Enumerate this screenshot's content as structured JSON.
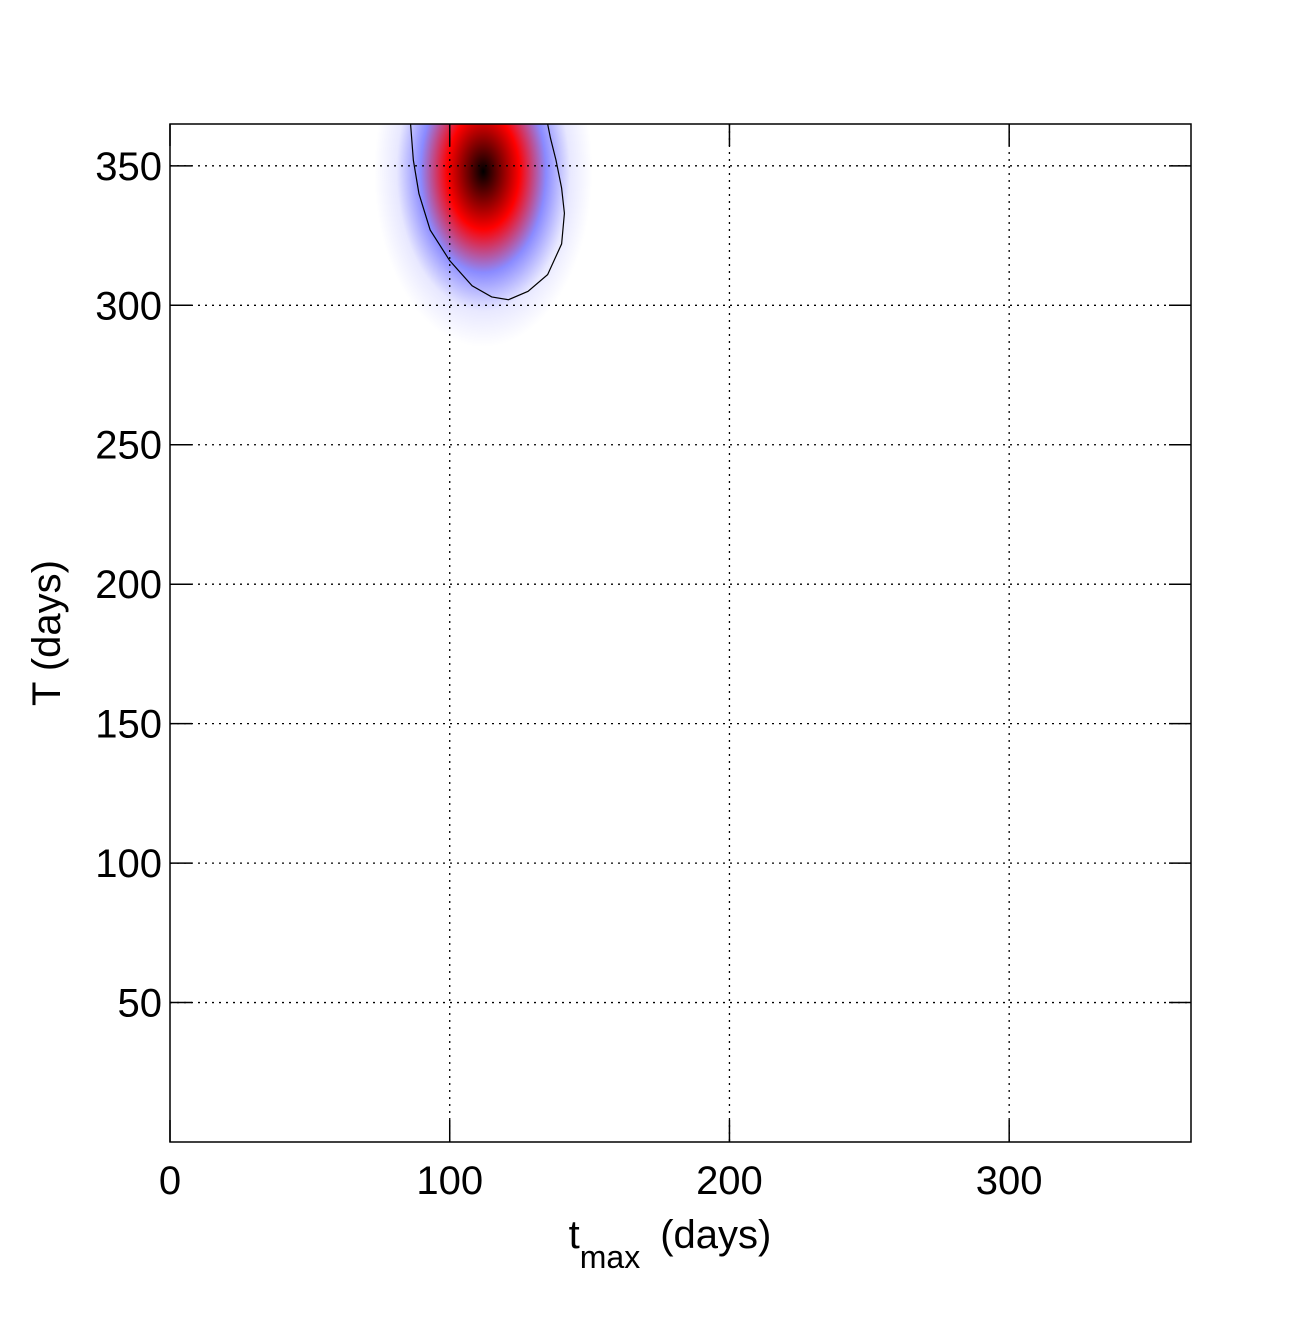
{
  "chart_data": {
    "type": "density",
    "xlabel": "t",
    "xlabel_subscript": "max",
    "xlabel_suffix": "(days)",
    "ylabel": "T (days)",
    "xlim": [
      0,
      365
    ],
    "ylim": [
      0,
      365
    ],
    "xticks": [
      0,
      100,
      200,
      300
    ],
    "yticks": [
      50,
      100,
      150,
      200,
      250,
      300,
      350
    ],
    "grid": true,
    "density": {
      "center_x": 112,
      "center_y": 348,
      "sigma_x": 13,
      "sigma_y": 21
    },
    "colormap": [
      "#000000",
      "#ff0000",
      "#8a8aff",
      "#e8e8ff",
      "#ffffff"
    ],
    "contour": {
      "x": [
        86,
        87,
        89,
        93,
        100,
        108,
        115,
        121,
        128,
        135,
        140,
        141,
        140,
        138,
        136,
        135
      ],
      "y": [
        365,
        352,
        340,
        327,
        316,
        307,
        303,
        302,
        305,
        311,
        322,
        333,
        342,
        352,
        360,
        365
      ]
    }
  }
}
